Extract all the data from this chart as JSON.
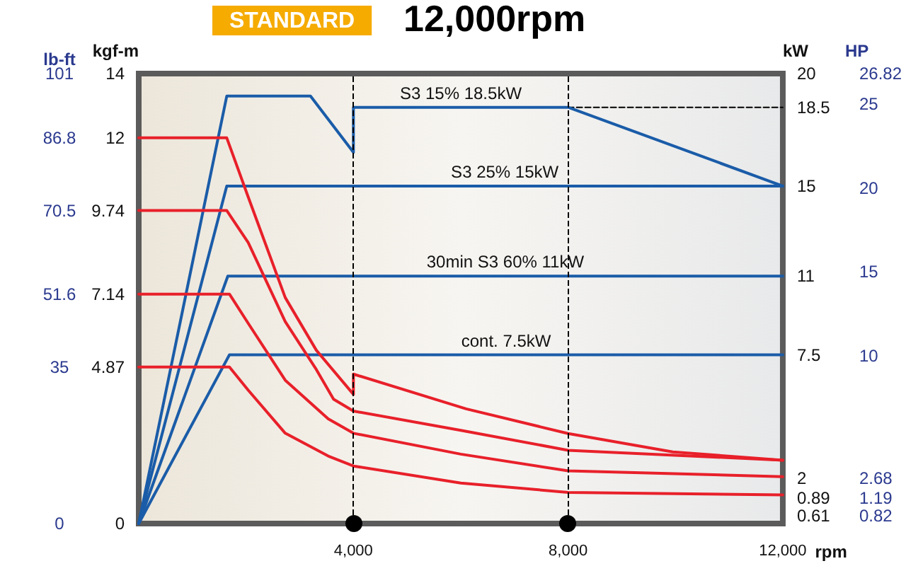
{
  "chart_data": {
    "type": "line",
    "title": "12,000rpm",
    "subtitle": "STANDARD",
    "xlabel": "rpm",
    "ylabel": "kgf-m",
    "y2label": "kW",
    "y3label": "HP",
    "xlim": [
      0,
      12000
    ],
    "xticks": [
      {
        "value": 4000,
        "label": "4,000"
      },
      {
        "value": 8000,
        "label": "8,000"
      },
      {
        "value": 12000,
        "label": "12,000"
      }
    ],
    "ylim": [
      0,
      14
    ],
    "yticks": [
      0,
      4.87,
      7.14,
      9.74,
      12,
      14
    ],
    "y2lim": [
      0,
      20
    ],
    "y2ticks": [
      0.61,
      0.89,
      2,
      7.5,
      11,
      15,
      18.5,
      20
    ],
    "y3lim": [
      0,
      26.82
    ],
    "y3ticks": [
      0.82,
      1.19,
      2.68,
      10,
      15,
      20,
      25,
      26.82
    ],
    "grid": false,
    "legend": false,
    "series": [
      {
        "name": "S3 15% 18.5kW",
        "color": "#1a5ca8",
        "axis": "y2",
        "x": [
          0,
          1640,
          3200,
          4000,
          4000,
          8000,
          12000
        ],
        "values": [
          0,
          19,
          19,
          16.5,
          18.5,
          18.5,
          15
        ]
      },
      {
        "name": "S3 25% 15kW",
        "color": "#1a5ca8",
        "axis": "y2",
        "x": [
          0,
          1640,
          12000
        ],
        "values": [
          0,
          15,
          15
        ]
      },
      {
        "name": "30min S3 60% 11kW",
        "color": "#1a5ca8",
        "axis": "y2",
        "x": [
          0,
          1660,
          12000
        ],
        "values": [
          0,
          11,
          11
        ]
      },
      {
        "name": "cont. 7.5kW",
        "color": "#1a5ca8",
        "axis": "y2",
        "x": [
          0,
          1690,
          12000
        ],
        "values": [
          0,
          7.5,
          7.5
        ]
      },
      {
        "color": "#000000",
        "axis": "y2",
        "line_style": "dashed",
        "x": [
          8000,
          12000
        ],
        "values": [
          18.5,
          18.5
        ]
      },
      {
        "color": "#e8202a",
        "x": [
          0,
          1640,
          2040,
          2730,
          3310,
          4000,
          4000,
          6100,
          8000,
          9950,
          12000
        ],
        "values": [
          12,
          12,
          10.16,
          7.03,
          5.39,
          4.02,
          4.65,
          3.57,
          2.8,
          2.23,
          1.97
        ]
      },
      {
        "color": "#e8202a",
        "x": [
          0,
          1640,
          2040,
          2730,
          3310,
          3630,
          4000,
          6000,
          8000,
          12000
        ],
        "values": [
          9.74,
          9.74,
          8.74,
          6.28,
          4.79,
          3.87,
          3.5,
          2.9,
          2.28,
          1.97
        ]
      },
      {
        "color": "#e8202a",
        "x": [
          0,
          1690,
          2040,
          2730,
          3530,
          4000,
          6000,
          8000,
          12000
        ],
        "values": [
          7.14,
          7.14,
          6.23,
          4.46,
          3.26,
          2.81,
          2.16,
          1.64,
          1.46
        ]
      },
      {
        "color": "#e8202a",
        "x": [
          0,
          1690,
          2040,
          2730,
          3530,
          4000,
          6000,
          8000,
          12000
        ],
        "values": [
          4.87,
          4.87,
          4.15,
          2.81,
          2.1,
          1.79,
          1.26,
          0.97,
          0.89
        ]
      }
    ],
    "ref_lines": [
      {
        "axis": "x",
        "value": 4000,
        "color": "#000000",
        "line_style": "dashed"
      },
      {
        "axis": "x",
        "value": 8000,
        "color": "#000000",
        "line_style": "dashed"
      }
    ],
    "annotations": [
      "lb-ft",
      "0",
      "35",
      "51.6",
      "70.5",
      "86.8",
      "101"
    ]
  }
}
